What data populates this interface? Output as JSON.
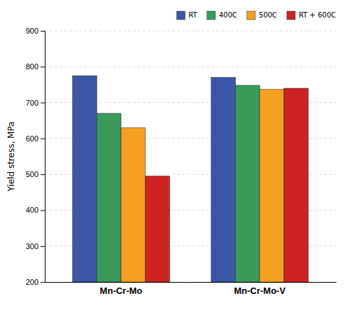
{
  "chart_data": {
    "type": "bar",
    "y_label": "Yield stress, MPa",
    "categories": [
      "Mn-Cr-Mo",
      "Mn-Cr-Mo-V"
    ],
    "series": [
      {
        "name": "RT",
        "color": "#3a57a7",
        "values": [
          775,
          770
        ]
      },
      {
        "name": "400C",
        "color": "#3a9a5c",
        "values": [
          670,
          748
        ]
      },
      {
        "name": "500C",
        "color": "#f5a020",
        "values": [
          630,
          737
        ]
      },
      {
        "name": "RT + 600C",
        "color": "#cc2222",
        "values": [
          495,
          740
        ]
      }
    ],
    "ylim": [
      200,
      900
    ],
    "yticks": [
      200,
      300,
      400,
      500,
      600,
      700,
      800,
      900
    ],
    "grid": true,
    "legend": "upper right"
  }
}
